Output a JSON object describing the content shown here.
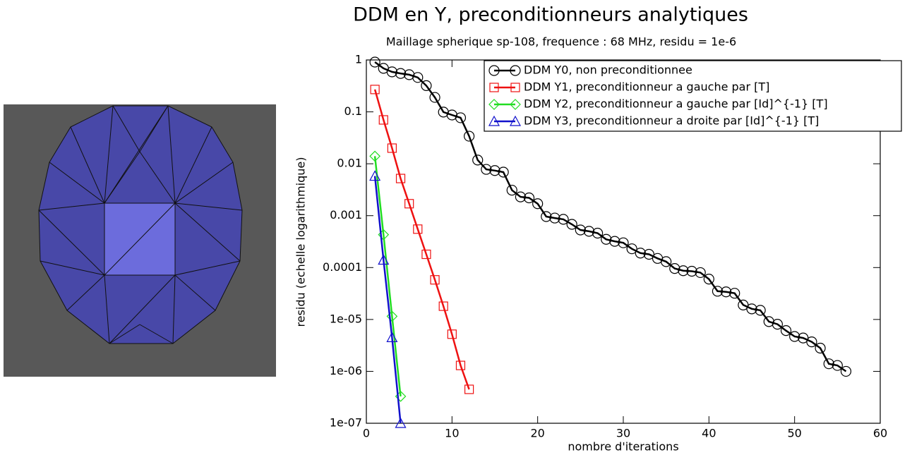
{
  "chart_data": {
    "type": "line",
    "title": "DDM en Y, preconditionneurs analytiques",
    "subtitle": "Maillage spherique sp-108, frequence : 68 MHz, residu = 1e-6",
    "x_label": "nombre d'iterations",
    "y_label": "residu (echelle logarithmique)",
    "log_y": true,
    "legend": "upper right",
    "xlim": [
      0,
      60
    ],
    "xticks": [
      0,
      10,
      20,
      30,
      40,
      50,
      60
    ],
    "ylim": [
      1e-07,
      1
    ],
    "yticks": [
      1,
      0.1,
      0.01,
      0.001,
      0.0001,
      {
        "value": 1e-05,
        "label": "1e-05"
      },
      {
        "value": 1e-06,
        "label": "1e-06"
      },
      {
        "value": 1e-07,
        "label": "1e-07"
      }
    ],
    "series": [
      {
        "name": "DDM Y0, non preconditionnee",
        "color": "#000000",
        "marker": "circle",
        "x": [
          1,
          2,
          3,
          4,
          5,
          6,
          7,
          8,
          9,
          10,
          11,
          12,
          13,
          14,
          15,
          16,
          17,
          18,
          19,
          20,
          21,
          22,
          23,
          24,
          25,
          26,
          27,
          28,
          29,
          30,
          31,
          32,
          33,
          34,
          35,
          36,
          37,
          38,
          39,
          40,
          41,
          42,
          43,
          44,
          45,
          46,
          47,
          48,
          49,
          50,
          51,
          52,
          53,
          54,
          55,
          56
        ],
        "values": [
          0.91,
          0.69,
          0.59,
          0.55,
          0.52,
          0.46,
          0.32,
          0.19,
          0.099,
          0.087,
          0.077,
          0.034,
          0.0118,
          0.0078,
          0.0074,
          0.0069,
          0.0031,
          0.0023,
          0.0022,
          0.0017,
          0.00096,
          0.0009,
          0.00085,
          0.00068,
          0.00053,
          0.0005,
          0.00046,
          0.00035,
          0.00032,
          0.0003,
          0.00023,
          0.00019,
          0.00018,
          0.00015,
          0.00013,
          9.6e-05,
          8.7e-05,
          8.5e-05,
          8e-05,
          6e-05,
          3.5e-05,
          3.4e-05,
          3.2e-05,
          1.9e-05,
          1.6e-05,
          1.5e-05,
          9.1e-06,
          8.1e-06,
          6.1e-06,
          4.7e-06,
          4.4e-06,
          3.7e-06,
          2.8e-06,
          1.4e-06,
          1.3e-06,
          1e-06
        ]
      },
      {
        "name": "DDM Y1, preconditionneur a gauche par [T]",
        "color": "#ee1111",
        "marker": "square",
        "x": [
          1,
          2,
          3,
          4,
          5,
          6,
          7,
          8,
          9,
          10,
          11,
          12
        ],
        "values": [
          0.27,
          0.07,
          0.02,
          0.0052,
          0.0017,
          0.00055,
          0.00018,
          5.8e-05,
          1.8e-05,
          5.2e-06,
          1.3e-06,
          4.5e-07
        ]
      },
      {
        "name": "DDM Y2, preconditionneur a gauche par [Id]^{-1} [T]",
        "color": "#22dd22",
        "marker": "diamond",
        "x": [
          1,
          2,
          3,
          4
        ],
        "values": [
          0.014,
          0.00043,
          1.15e-05,
          3.3e-07
        ]
      },
      {
        "name": "DDM Y3, preconditionneur a droite par [Id]^{-1} [T]",
        "color": "#1111cc",
        "marker": "triangle",
        "x": [
          1,
          2,
          3,
          4
        ],
        "values": [
          0.0058,
          0.00014,
          4.5e-06,
          1e-07
        ]
      }
    ]
  }
}
